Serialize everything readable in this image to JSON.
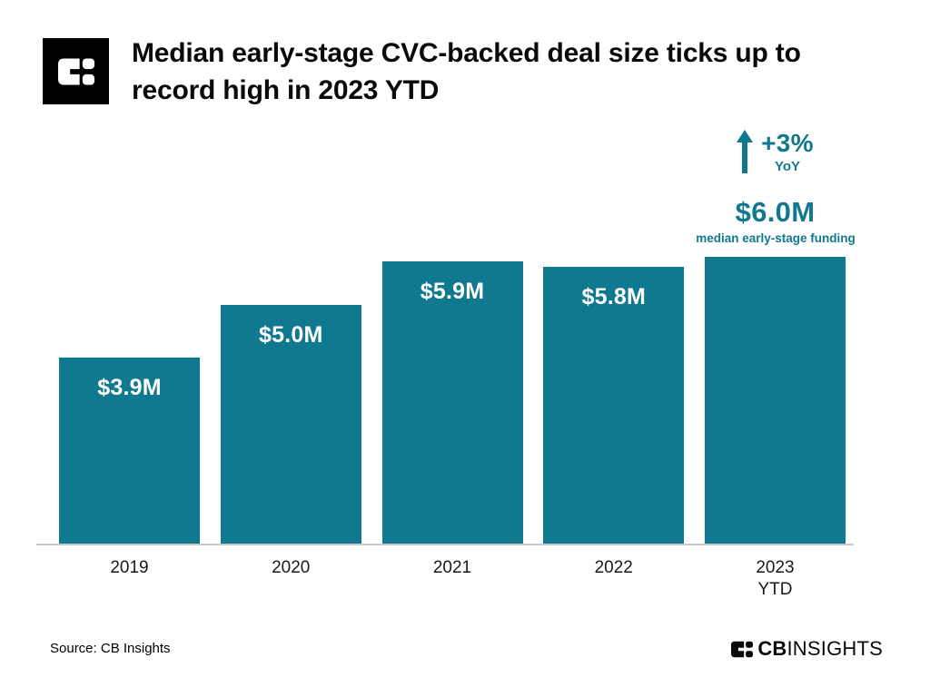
{
  "header": {
    "title_lines": [
      "Median early-stage CVC-backed deal size ticks up to",
      "record high in 2023 YTD"
    ]
  },
  "chart_data": {
    "type": "bar",
    "title": "Median early-stage CVC-backed deal size ticks up to record high in 2023 YTD",
    "categories": [
      "2019",
      "2020",
      "2021",
      "2022",
      "2023 YTD"
    ],
    "values": [
      3.9,
      5.0,
      5.9,
      5.8,
      6.0
    ],
    "unit": "USD millions",
    "bar_labels": [
      "$3.9M",
      "$5.0M",
      "$5.9M",
      "$5.8M",
      ""
    ],
    "tick_labels": [
      {
        "line1": "2019",
        "line2": ""
      },
      {
        "line1": "2020",
        "line2": ""
      },
      {
        "line1": "2021",
        "line2": ""
      },
      {
        "line1": "2022",
        "line2": ""
      },
      {
        "line1": "2023",
        "line2": "YTD"
      }
    ],
    "ylim": [
      0,
      6.5
    ],
    "grid": false,
    "legend": false,
    "bar_color": "#11798F",
    "bar_label_color": "#FFFFFF",
    "axis_line_color": "#CBCBCB",
    "annotation": {
      "delta": "+3%",
      "delta_period": "YoY",
      "value": "$6.0M",
      "caption": "median early-stage funding",
      "color": "#11798F"
    }
  },
  "footer": {
    "source": "Source: CB Insights",
    "brand_bold": "CB",
    "brand_light": "INSIGHTS"
  }
}
